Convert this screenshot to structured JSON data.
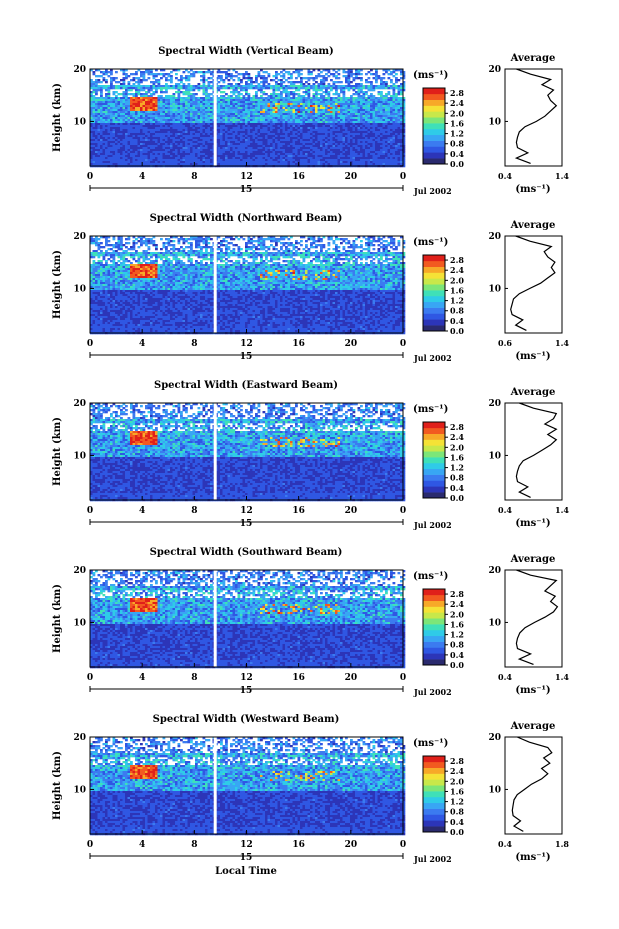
{
  "colors": {
    "scale": [
      "#2a2a6e",
      "#2c35b8",
      "#2f57e3",
      "#3b7bf0",
      "#38a6f4",
      "#2fcbe8",
      "#3fe0b8",
      "#7ce678",
      "#c8e84a",
      "#f5e236",
      "#f7a928",
      "#f25a20",
      "#e0201a"
    ],
    "gap": "#ffffff",
    "ink": "#000000"
  },
  "chart_data": [
    {
      "type": "heatmap",
      "title": "Spectral Width (Vertical Beam)",
      "ylabel": "Height (km)",
      "xlabel": "",
      "x_ticks": [
        "0",
        "4",
        "8",
        "12",
        "16",
        "20",
        "0"
      ],
      "y_ticks": [
        "20",
        "10"
      ],
      "date_label": "15",
      "month_label": "Jul 2002",
      "xlim": [
        0,
        24
      ],
      "ylim": [
        1.5,
        20
      ],
      "colorbar": {
        "unit": "(ms⁻¹)",
        "ticks": [
          "2.8",
          "2.4",
          "2.0",
          "1.6",
          "1.2",
          "0.8",
          "0.4",
          "0.0"
        ],
        "range": [
          0,
          3.0
        ]
      },
      "profile": {
        "title": "Average",
        "xlabel": "(ms⁻¹)",
        "x_ticks": [
          "0.4",
          "1.4"
        ],
        "y_ticks": [
          "20",
          "10"
        ],
        "xlim": [
          0.4,
          1.4
        ],
        "height": [
          2,
          3,
          4,
          5,
          6,
          7,
          8,
          9,
          10,
          11,
          12,
          13,
          14,
          15,
          16,
          17,
          18,
          19,
          20
        ],
        "value": [
          0.85,
          0.6,
          0.8,
          0.62,
          0.6,
          0.62,
          0.65,
          0.75,
          0.95,
          1.1,
          1.2,
          1.3,
          1.2,
          1.15,
          1.25,
          1.05,
          1.2,
          0.85,
          0.6
        ]
      }
    },
    {
      "type": "heatmap",
      "title": "Spectral Width (Northward Beam)",
      "ylabel": "Height (km)",
      "xlabel": "",
      "x_ticks": [
        "0",
        "4",
        "8",
        "12",
        "16",
        "20",
        "0"
      ],
      "y_ticks": [
        "20",
        "10"
      ],
      "date_label": "15",
      "month_label": "Jul 2002",
      "xlim": [
        0,
        24
      ],
      "ylim": [
        1.5,
        20
      ],
      "colorbar": {
        "unit": "(ms⁻¹)",
        "ticks": [
          "2.8",
          "2.4",
          "2.0",
          "1.6",
          "1.2",
          "0.8",
          "0.4",
          "0.0"
        ],
        "range": [
          0,
          3.0
        ]
      },
      "profile": {
        "title": "Average",
        "xlabel": "(ms⁻¹)",
        "x_ticks": [
          "0.6",
          "1.4"
        ],
        "y_ticks": [
          "20",
          "10"
        ],
        "xlim": [
          0.6,
          1.4
        ],
        "height": [
          2,
          3,
          4,
          5,
          6,
          7,
          8,
          9,
          10,
          11,
          12,
          13,
          14,
          15,
          16,
          17,
          18,
          19,
          20
        ],
        "value": [
          0.9,
          0.75,
          0.85,
          0.7,
          0.68,
          0.7,
          0.72,
          0.8,
          0.95,
          1.1,
          1.2,
          1.3,
          1.25,
          1.3,
          1.2,
          1.15,
          1.25,
          0.95,
          0.75
        ]
      }
    },
    {
      "type": "heatmap",
      "title": "Spectral Width (Eastward Beam)",
      "ylabel": "Height (km)",
      "xlabel": "",
      "x_ticks": [
        "0",
        "4",
        "8",
        "12",
        "16",
        "20",
        "0"
      ],
      "y_ticks": [
        "20",
        "10"
      ],
      "date_label": "15",
      "month_label": "Jul 2002",
      "xlim": [
        0,
        24
      ],
      "ylim": [
        1.5,
        20
      ],
      "colorbar": {
        "unit": "(ms⁻¹)",
        "ticks": [
          "2.8",
          "2.4",
          "2.0",
          "1.6",
          "1.2",
          "0.8",
          "0.4",
          "0.0"
        ],
        "range": [
          0,
          3.0
        ]
      },
      "profile": {
        "title": "Average",
        "xlabel": "(ms⁻¹)",
        "x_ticks": [
          "0.4",
          "1.4"
        ],
        "y_ticks": [
          "20",
          "10"
        ],
        "xlim": [
          0.4,
          1.4
        ],
        "height": [
          2,
          3,
          4,
          5,
          6,
          7,
          8,
          9,
          10,
          11,
          12,
          13,
          14,
          15,
          16,
          17,
          18,
          19,
          20
        ],
        "value": [
          0.85,
          0.65,
          0.8,
          0.62,
          0.6,
          0.62,
          0.65,
          0.72,
          0.9,
          1.05,
          1.2,
          1.3,
          1.15,
          1.3,
          1.1,
          1.25,
          1.3,
          0.9,
          0.65
        ]
      }
    },
    {
      "type": "heatmap",
      "title": "Spectral Width (Southward Beam)",
      "ylabel": "Height (km)",
      "xlabel": "",
      "x_ticks": [
        "0",
        "4",
        "8",
        "12",
        "16",
        "20",
        "0"
      ],
      "y_ticks": [
        "20",
        "10"
      ],
      "date_label": "15",
      "month_label": "Jul 2002",
      "xlim": [
        0,
        24
      ],
      "ylim": [
        1.5,
        20
      ],
      "colorbar": {
        "unit": "(ms⁻¹)",
        "ticks": [
          "2.8",
          "2.4",
          "2.0",
          "1.6",
          "1.2",
          "0.8",
          "0.4",
          "0.0"
        ],
        "range": [
          0,
          3.0
        ]
      },
      "profile": {
        "title": "Average",
        "xlabel": "(ms⁻¹)",
        "x_ticks": [
          "0.4",
          "1.4"
        ],
        "y_ticks": [
          "20",
          "10"
        ],
        "xlim": [
          0.4,
          1.4
        ],
        "height": [
          2,
          3,
          4,
          5,
          6,
          7,
          8,
          9,
          10,
          11,
          12,
          13,
          14,
          15,
          16,
          17,
          18,
          19,
          20
        ],
        "value": [
          0.9,
          0.65,
          0.85,
          0.62,
          0.6,
          0.62,
          0.66,
          0.75,
          0.92,
          1.1,
          1.25,
          1.32,
          1.2,
          1.28,
          1.1,
          1.2,
          1.3,
          0.85,
          0.6
        ]
      }
    },
    {
      "type": "heatmap",
      "title": "Spectral Width (Westward Beam)",
      "ylabel": "Height (km)",
      "xlabel": "Local Time",
      "x_ticks": [
        "0",
        "4",
        "8",
        "12",
        "16",
        "20",
        "0"
      ],
      "y_ticks": [
        "20",
        "10"
      ],
      "date_label": "15",
      "month_label": "Jul 2002",
      "xlim": [
        0,
        24
      ],
      "ylim": [
        1.5,
        20
      ],
      "colorbar": {
        "unit": "(ms⁻¹)",
        "ticks": [
          "2.8",
          "2.4",
          "2.0",
          "1.6",
          "1.2",
          "0.8",
          "0.4",
          "0.0"
        ],
        "range": [
          0,
          3.0
        ]
      },
      "profile": {
        "title": "Average",
        "xlabel": "(ms⁻¹)",
        "x_ticks": [
          "0.4",
          "1.8"
        ],
        "y_ticks": [
          "20",
          "10"
        ],
        "xlim": [
          0.4,
          1.8
        ],
        "height": [
          2,
          3,
          4,
          5,
          6,
          7,
          8,
          9,
          10,
          11,
          12,
          13,
          14,
          15,
          16,
          17,
          18,
          19,
          20
        ],
        "value": [
          0.85,
          0.62,
          0.78,
          0.6,
          0.58,
          0.6,
          0.62,
          0.7,
          0.88,
          1.05,
          1.3,
          1.45,
          1.3,
          1.5,
          1.35,
          1.55,
          1.45,
          1.0,
          0.7
        ]
      }
    }
  ]
}
